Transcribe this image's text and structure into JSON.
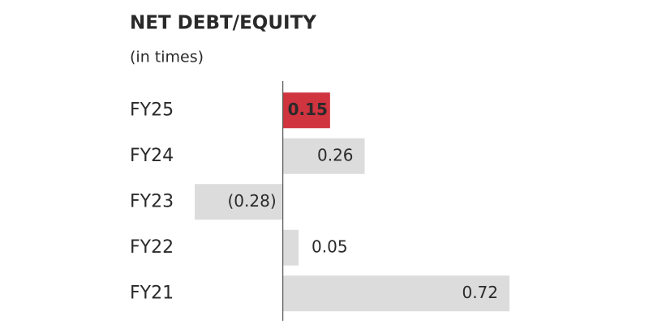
{
  "chart_data": {
    "type": "hbar",
    "title": "NET DEBT/EQUITY",
    "subtitle": "(in times)",
    "categories": [
      "FY25",
      "FY24",
      "FY23",
      "FY22",
      "FY21"
    ],
    "values": [
      0.15,
      0.26,
      -0.28,
      0.05,
      0.72
    ],
    "value_labels": [
      "0.15",
      "0.26",
      "(0.28)",
      "0.05",
      "0.72"
    ],
    "colors": [
      "#d0343f",
      "#dcdcdc",
      "#dcdcdc",
      "#dcdcdc",
      "#dcdcdc"
    ],
    "highlight_color": "#d0343f"
  }
}
